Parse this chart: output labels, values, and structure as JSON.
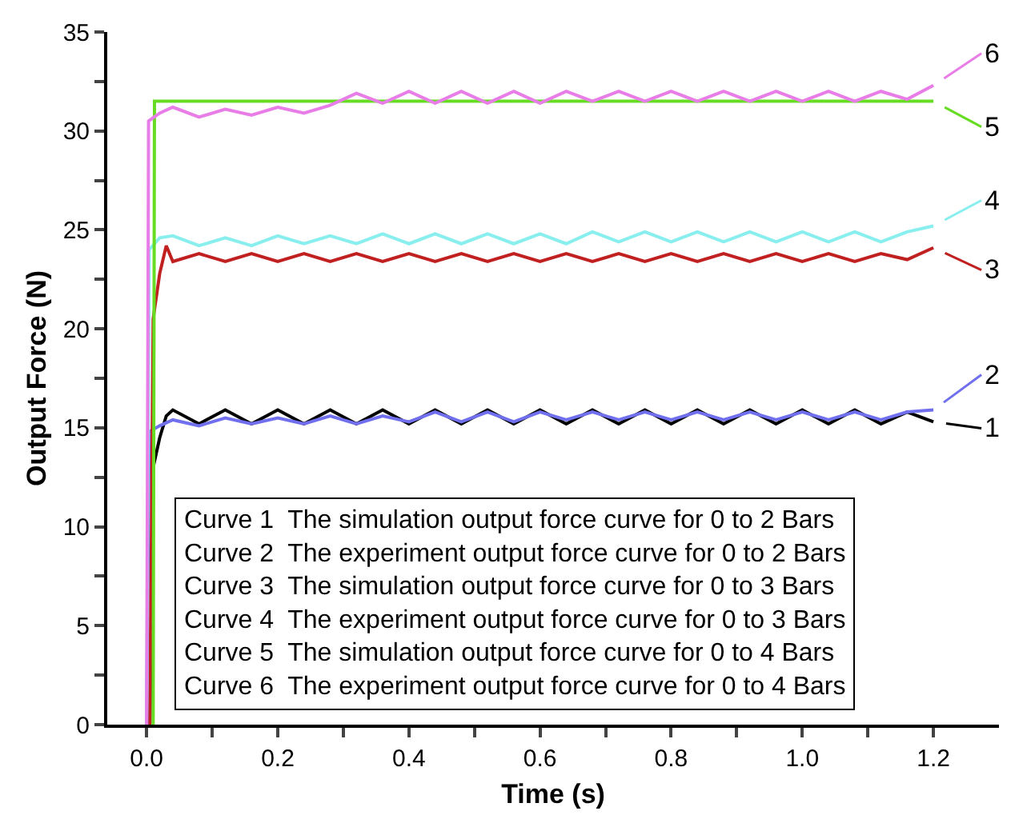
{
  "chart_data": {
    "type": "line",
    "xlabel": "Time (s)",
    "ylabel": "Output Force (N)",
    "xlim": [
      -0.06,
      1.3
    ],
    "xticks": [
      {
        "value": 0,
        "label": "0.0"
      },
      {
        "value": 0.1,
        "label": null
      },
      {
        "value": 0.2,
        "label": "0.2"
      },
      {
        "value": 0.3,
        "label": null
      },
      {
        "value": 0.4,
        "label": "0.4"
      },
      {
        "value": 0.5,
        "label": null
      },
      {
        "value": 0.6,
        "label": "0.6"
      },
      {
        "value": 0.7,
        "label": null
      },
      {
        "value": 0.8,
        "label": "0.8"
      },
      {
        "value": 0.9,
        "label": null
      },
      {
        "value": 1.0,
        "label": "1.0"
      },
      {
        "value": 1.1,
        "label": null
      },
      {
        "value": 1.2,
        "label": "1.2"
      }
    ],
    "ylim": [
      0,
      35
    ],
    "yticks": [
      0,
      {
        "value": 2.5,
        "label": null
      },
      5,
      {
        "value": 7.5,
        "label": null
      },
      10,
      {
        "value": 12.5,
        "label": null
      },
      15,
      {
        "value": 17.5,
        "label": null
      },
      20,
      {
        "value": 22.5,
        "label": null
      },
      25,
      {
        "value": 27.5,
        "label": null
      },
      30,
      {
        "value": 32.5,
        "label": null
      },
      35
    ],
    "legend": "right",
    "marker": "none",
    "line_style": "solid",
    "series": [
      {
        "name": "1",
        "color": "#000000",
        "x": [
          0.005,
          0.01,
          0.02,
          0.03,
          0.04,
          0.08,
          0.12,
          0.16,
          0.2,
          0.24,
          0.28,
          0.32,
          0.36,
          0.4,
          0.44,
          0.48,
          0.52,
          0.56,
          0.6,
          0.64,
          0.68,
          0.72,
          0.76,
          0.8,
          0.84,
          0.88,
          0.92,
          0.96,
          1.0,
          1.04,
          1.08,
          1.12,
          1.16,
          1.2
        ],
        "values": [
          0,
          13,
          14.5,
          15.6,
          15.9,
          15.2,
          15.9,
          15.2,
          15.9,
          15.2,
          15.9,
          15.2,
          15.9,
          15.2,
          15.9,
          15.2,
          15.9,
          15.2,
          15.9,
          15.2,
          15.9,
          15.2,
          15.9,
          15.2,
          15.9,
          15.2,
          15.9,
          15.2,
          15.9,
          15.2,
          15.9,
          15.2,
          15.8,
          15.3
        ]
      },
      {
        "name": "2",
        "color": "#7070ee",
        "x": [
          0,
          0.004,
          0.02,
          0.04,
          0.08,
          0.12,
          0.16,
          0.2,
          0.24,
          0.28,
          0.32,
          0.36,
          0.4,
          0.44,
          0.48,
          0.52,
          0.56,
          0.6,
          0.64,
          0.68,
          0.72,
          0.76,
          0.8,
          0.84,
          0.88,
          0.92,
          0.96,
          1.0,
          1.04,
          1.08,
          1.12,
          1.16,
          1.2
        ],
        "values": [
          0,
          14.8,
          15.1,
          15.4,
          15.1,
          15.5,
          15.2,
          15.5,
          15.2,
          15.6,
          15.2,
          15.6,
          15.3,
          15.8,
          15.3,
          15.8,
          15.3,
          15.8,
          15.4,
          15.8,
          15.4,
          15.8,
          15.4,
          15.8,
          15.4,
          15.8,
          15.4,
          15.8,
          15.4,
          15.8,
          15.4,
          15.8,
          15.9
        ]
      },
      {
        "name": "3",
        "color": "#c02020",
        "x": [
          0.005,
          0.01,
          0.02,
          0.03,
          0.04,
          0.08,
          0.12,
          0.16,
          0.2,
          0.24,
          0.28,
          0.32,
          0.36,
          0.4,
          0.44,
          0.48,
          0.52,
          0.56,
          0.6,
          0.64,
          0.68,
          0.72,
          0.76,
          0.8,
          0.84,
          0.88,
          0.92,
          0.96,
          1.0,
          1.04,
          1.08,
          1.12,
          1.16,
          1.2
        ],
        "values": [
          0,
          20.5,
          22.8,
          24.2,
          23.4,
          23.8,
          23.4,
          23.8,
          23.4,
          23.8,
          23.4,
          23.8,
          23.4,
          23.8,
          23.4,
          23.8,
          23.4,
          23.8,
          23.4,
          23.8,
          23.4,
          23.8,
          23.4,
          23.8,
          23.4,
          23.8,
          23.4,
          23.8,
          23.4,
          23.8,
          23.4,
          23.8,
          23.5,
          24.1
        ]
      },
      {
        "name": "4",
        "color": "#88eeee",
        "x": [
          0,
          0.004,
          0.02,
          0.04,
          0.08,
          0.12,
          0.16,
          0.2,
          0.24,
          0.28,
          0.32,
          0.36,
          0.4,
          0.44,
          0.48,
          0.52,
          0.56,
          0.6,
          0.64,
          0.68,
          0.72,
          0.76,
          0.8,
          0.84,
          0.88,
          0.92,
          0.96,
          1.0,
          1.04,
          1.08,
          1.12,
          1.16,
          1.2
        ],
        "values": [
          0,
          24.0,
          24.6,
          24.7,
          24.2,
          24.6,
          24.2,
          24.7,
          24.3,
          24.7,
          24.3,
          24.8,
          24.3,
          24.8,
          24.3,
          24.8,
          24.3,
          24.8,
          24.3,
          24.9,
          24.4,
          24.9,
          24.4,
          24.9,
          24.4,
          24.9,
          24.4,
          24.9,
          24.4,
          24.9,
          24.4,
          24.9,
          25.2
        ]
      },
      {
        "name": "5",
        "color": "#66dd22",
        "x": [
          0.01,
          0.012,
          1.2
        ],
        "values": [
          0,
          31.5,
          31.5
        ]
      },
      {
        "name": "6",
        "color": "#e87de8",
        "x": [
          0,
          0.003,
          0.02,
          0.04,
          0.08,
          0.12,
          0.16,
          0.2,
          0.24,
          0.28,
          0.32,
          0.36,
          0.4,
          0.44,
          0.48,
          0.52,
          0.56,
          0.6,
          0.64,
          0.68,
          0.72,
          0.76,
          0.8,
          0.84,
          0.88,
          0.92,
          0.96,
          1.0,
          1.04,
          1.08,
          1.12,
          1.16,
          1.2
        ],
        "values": [
          0,
          30.5,
          30.9,
          31.2,
          30.7,
          31.1,
          30.8,
          31.2,
          30.9,
          31.3,
          31.9,
          31.4,
          32.0,
          31.4,
          32.0,
          31.4,
          32.0,
          31.4,
          32.0,
          31.5,
          32.0,
          31.5,
          32.0,
          31.5,
          32.0,
          31.5,
          32.0,
          31.5,
          32.0,
          31.5,
          32.0,
          31.6,
          32.3
        ]
      }
    ],
    "annotations": [
      "Curve 1  The simulation output force curve for 0 to 2 Bars",
      "Curve 2  The experiment output force curve for 0 to 2 Bars",
      "Curve 3  The simulation output force curve for 0 to 3 Bars",
      "Curve 4  The experiment output force curve for 0 to 3 Bars",
      "Curve 5  The simulation output force curve for 0 to 4 Bars",
      "Curve 6  The experiment output force curve for 0 to 4 Bars"
    ]
  }
}
